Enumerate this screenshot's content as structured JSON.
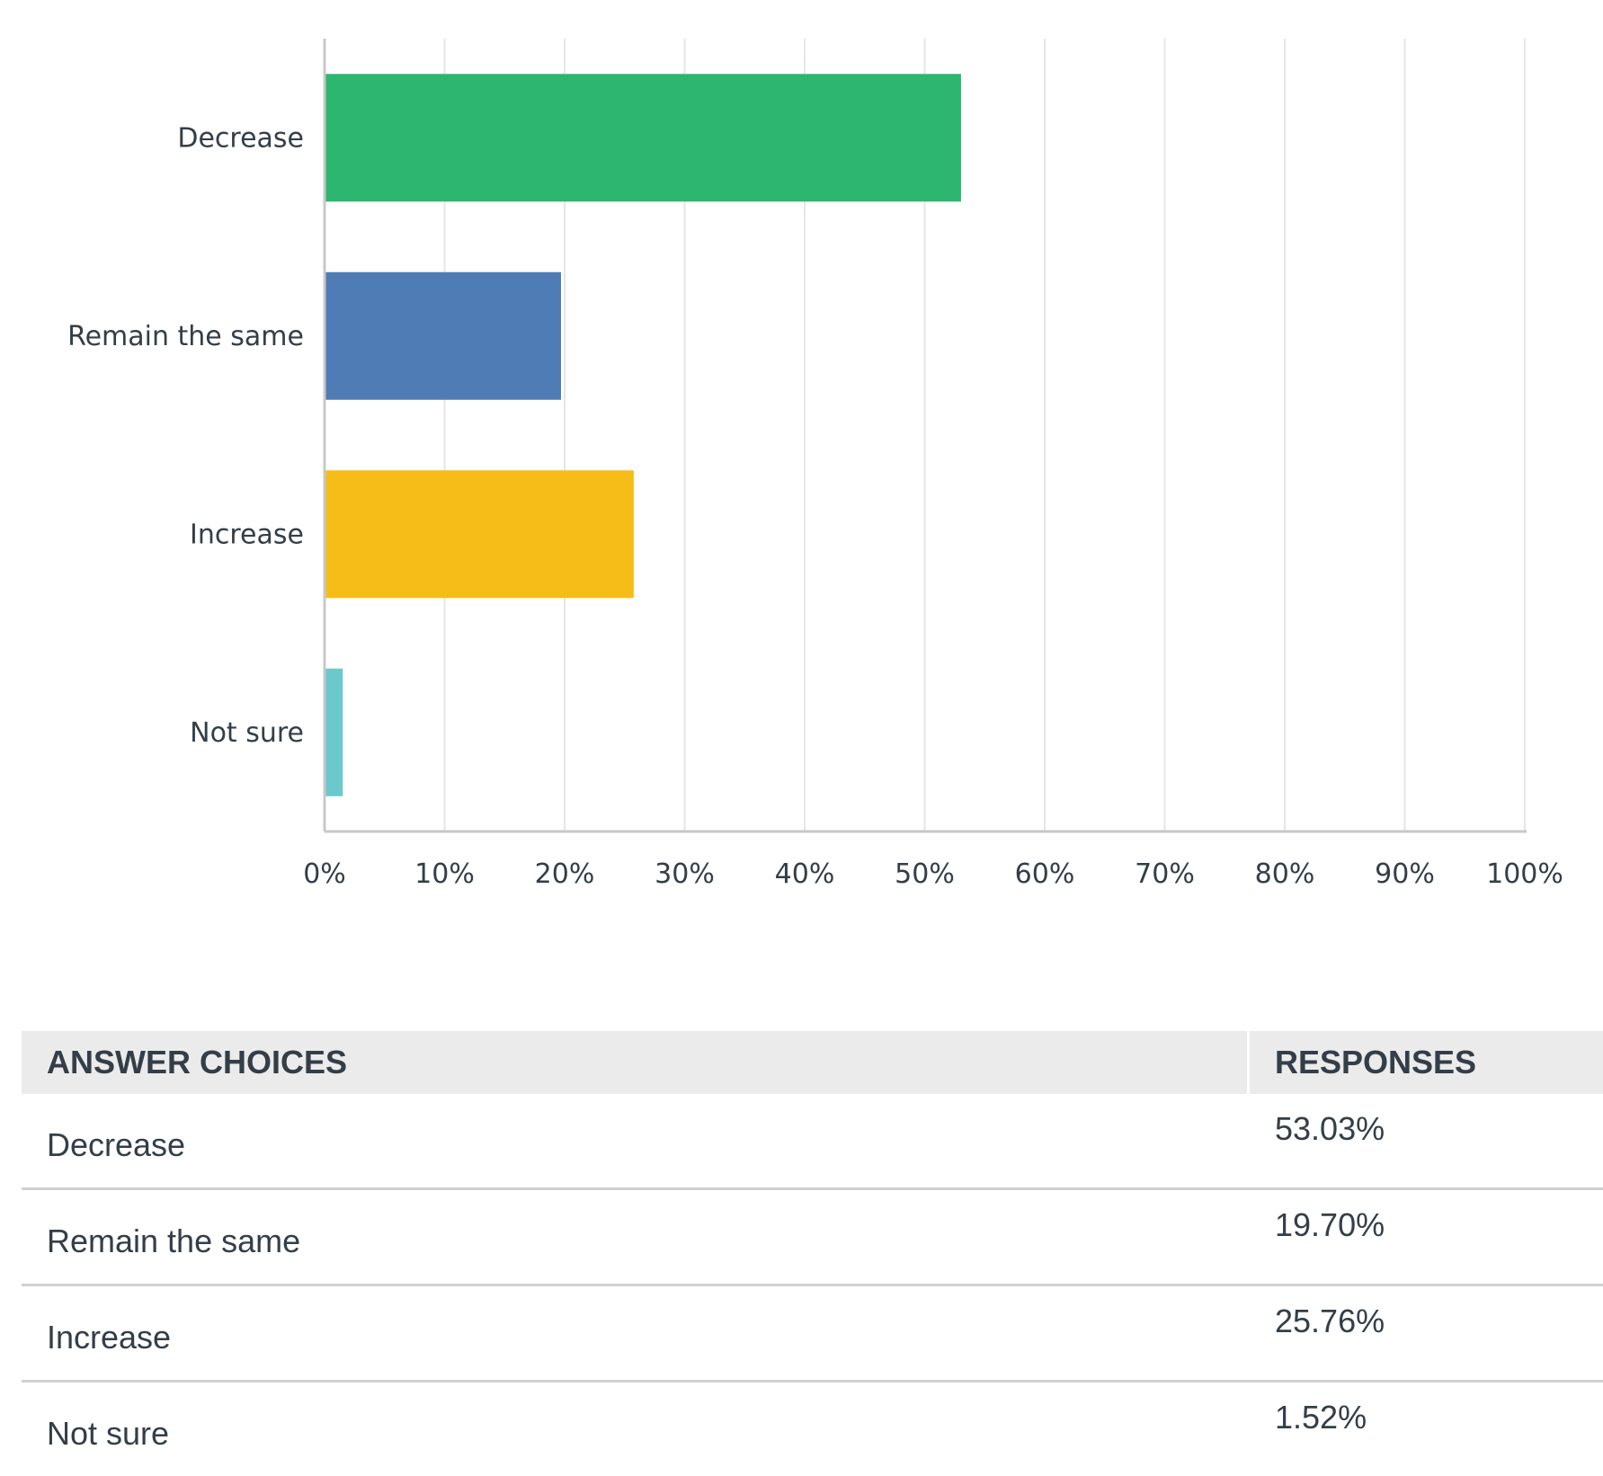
{
  "chart_data": {
    "type": "bar",
    "orientation": "horizontal",
    "categories": [
      "Decrease",
      "Remain the same",
      "Increase",
      "Not sure"
    ],
    "values": [
      53.03,
      19.7,
      25.76,
      1.52
    ],
    "colors": [
      "#2db670",
      "#507cb6",
      "#f6bd18",
      "#6bc8cd"
    ],
    "xlim": [
      0,
      100
    ],
    "xticks": [
      "0%",
      "10%",
      "20%",
      "30%",
      "40%",
      "50%",
      "60%",
      "70%",
      "80%",
      "90%",
      "100%"
    ],
    "grid": true,
    "title": "",
    "xlabel": "",
    "ylabel": ""
  },
  "table": {
    "headers": [
      "ANSWER CHOICES",
      "RESPONSES"
    ],
    "rows": [
      {
        "choice": "Decrease",
        "response": "53.03%"
      },
      {
        "choice": "Remain the same",
        "response": "19.70%"
      },
      {
        "choice": "Increase",
        "response": "25.76%"
      },
      {
        "choice": "Not sure",
        "response": "1.52%"
      }
    ]
  }
}
